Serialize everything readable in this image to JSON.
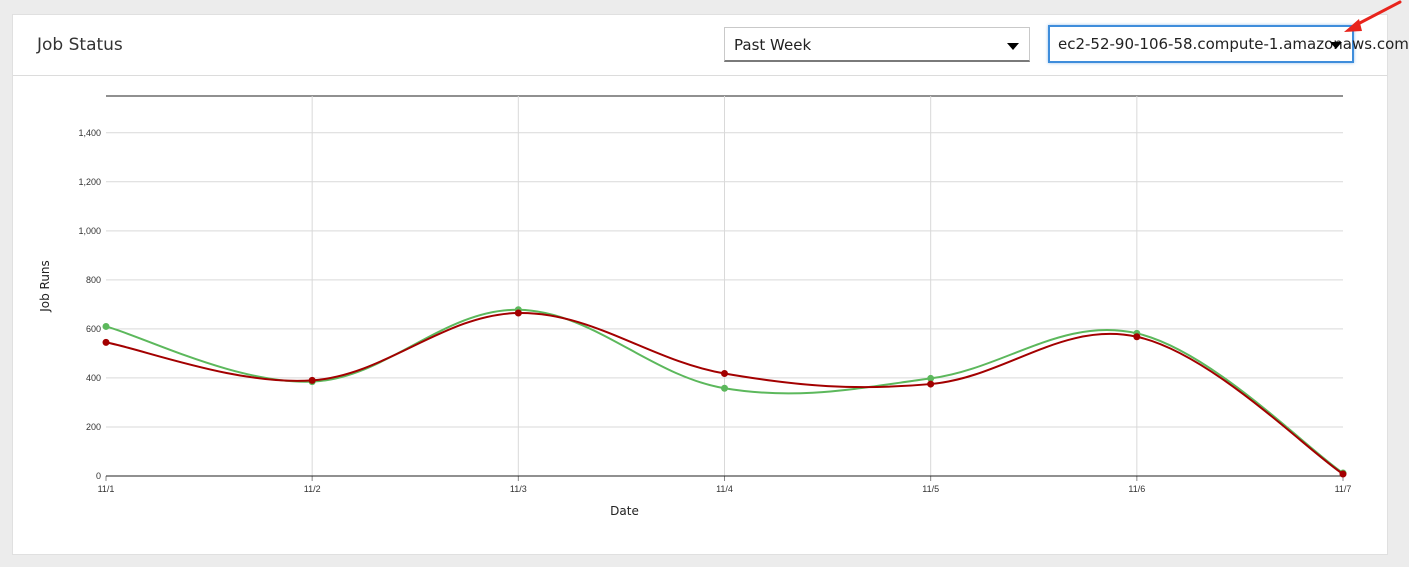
{
  "card": {
    "title": "Job Status"
  },
  "filters": {
    "period": {
      "selected": "Past Week",
      "icon": "caret-down-icon"
    },
    "host": {
      "selected": "ec2-52-90-106-58.compute-1.amazonaws.com",
      "icon": "caret-down-icon"
    }
  },
  "annotation": {
    "color": "#e8241c",
    "icon": "red-arrow-icon"
  },
  "chart_data": {
    "type": "line",
    "title": "",
    "xlabel": "Date",
    "ylabel": "Job Runs",
    "categories": [
      "11/1",
      "11/2",
      "11/3",
      "11/4",
      "11/5",
      "11/6",
      "11/7"
    ],
    "ylim": [
      0,
      1550
    ],
    "yticks": [
      0,
      200,
      400,
      600,
      800,
      1000,
      1200,
      1400
    ],
    "ytick_labels": [
      "0",
      "200",
      "400",
      "600",
      "800",
      "1,000",
      "1,200",
      "1,400"
    ],
    "grid": true,
    "legend": "none",
    "series": [
      {
        "color": "#5cb85c",
        "values": [
          610,
          385,
          678,
          358,
          398,
          582,
          12
        ]
      },
      {
        "color": "#a30000",
        "values": [
          545,
          390,
          665,
          418,
          375,
          568,
          8
        ]
      }
    ]
  }
}
